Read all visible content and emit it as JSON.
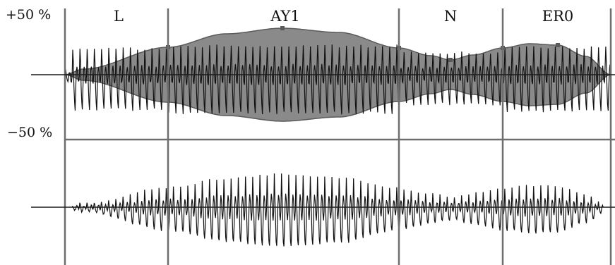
{
  "axis_labels": {
    "top": "+50 %",
    "bottom": "−50 %"
  },
  "segments": [
    {
      "label": "L"
    },
    {
      "label": "AY1"
    },
    {
      "label": "N"
    },
    {
      "label": "ER0"
    }
  ],
  "colors": {
    "background": "#ffffff",
    "envelope_fill": "#8a8a8a",
    "envelope_edge": "#5a5a5a",
    "waveform": "#111111",
    "grid": "#6e6e6e"
  }
}
